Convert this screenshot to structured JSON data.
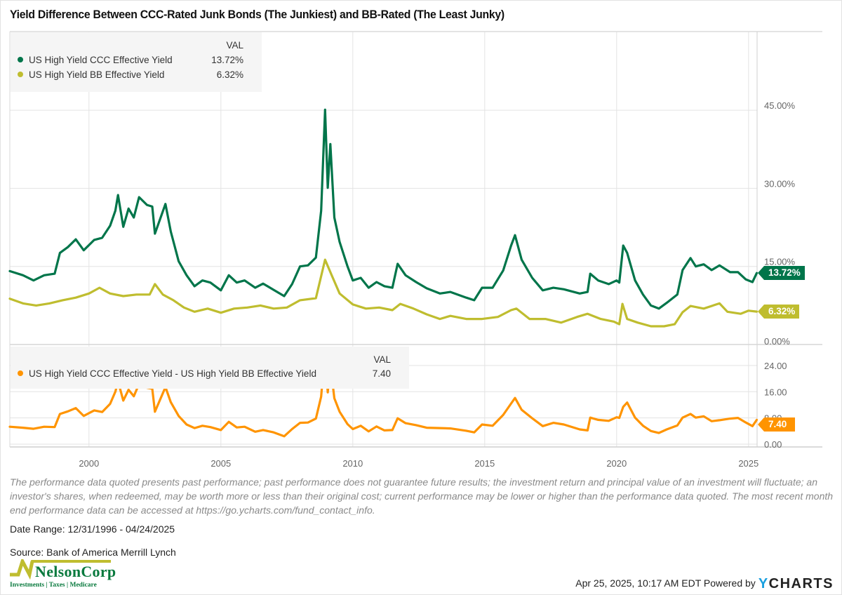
{
  "title": "Yield Difference Between CCC-Rated Junk Bonds (The Junkiest) and BB-Rated (The Least Junky)",
  "legend_top": {
    "header": "VAL",
    "items": [
      {
        "label": "US High Yield CCC Effective Yield",
        "value": "13.72%",
        "color": "#00754a"
      },
      {
        "label": "US High Yield BB Effective Yield",
        "value": "6.32%",
        "color": "#bfbd2f"
      }
    ]
  },
  "legend_bottom": {
    "header": "VAL",
    "items": [
      {
        "label": "US High Yield CCC Effective Yield - US High Yield BB Effective Yield",
        "value": "7.40",
        "color": "#ff9400"
      }
    ]
  },
  "tags": {
    "ccc": "13.72%",
    "bb": "6.32%",
    "spread": "7.40"
  },
  "chart_data": [
    {
      "type": "line",
      "title": "Yield Difference Between CCC-Rated Junk Bonds (The Junkiest) and BB-Rated (The Least Junky)",
      "xlabel": "",
      "ylabel": "",
      "x_ticks": [
        "2000",
        "2005",
        "2010",
        "2015",
        "2020",
        "2025"
      ],
      "xlim": [
        1997.0,
        2025.31
      ],
      "y_ticks": [
        "0.00%",
        "15.00%",
        "30.00%",
        "45.00%"
      ],
      "ylim": [
        0,
        45
      ],
      "grid": true,
      "legend": "top-left",
      "series": [
        {
          "name": "US High Yield CCC Effective Yield",
          "color": "#00754a",
          "last_value": 13.72,
          "x": [
            1997.0,
            1997.5,
            1997.9,
            1998.3,
            1998.7,
            1998.9,
            1999.2,
            1999.5,
            1999.8,
            2000.2,
            2000.5,
            2000.8,
            2001.0,
            2001.1,
            2001.3,
            2001.5,
            2001.7,
            2001.9,
            2002.2,
            2002.4,
            2002.5,
            2002.9,
            2003.1,
            2003.4,
            2003.7,
            2004.0,
            2004.3,
            2004.6,
            2005.0,
            2005.3,
            2005.6,
            2005.9,
            2006.3,
            2006.6,
            2007.0,
            2007.4,
            2007.7,
            2008.0,
            2008.3,
            2008.6,
            2008.8,
            2008.95,
            2009.05,
            2009.15,
            2009.3,
            2009.5,
            2009.8,
            2010.0,
            2010.3,
            2010.6,
            2010.9,
            2011.2,
            2011.5,
            2011.7,
            2012.0,
            2012.4,
            2012.8,
            2013.3,
            2013.7,
            2014.3,
            2014.6,
            2014.9,
            2015.3,
            2015.7,
            2016.0,
            2016.15,
            2016.4,
            2016.8,
            2017.2,
            2017.6,
            2018.0,
            2018.6,
            2018.9,
            2019.0,
            2019.3,
            2019.7,
            2020.0,
            2020.1,
            2020.25,
            2020.4,
            2020.7,
            2021.0,
            2021.3,
            2021.6,
            2021.9,
            2022.3,
            2022.5,
            2022.8,
            2023.0,
            2023.3,
            2023.6,
            2023.9,
            2024.3,
            2024.6,
            2024.9,
            2025.15,
            2025.31
          ],
          "values": [
            14.1,
            13.3,
            12.3,
            13.3,
            13.6,
            17.6,
            18.7,
            20.2,
            18.1,
            20.1,
            20.5,
            22.8,
            25.7,
            28.7,
            22.6,
            26.1,
            24.4,
            28.3,
            26.8,
            26.5,
            21.3,
            27.0,
            21.7,
            16.0,
            13.3,
            11.2,
            12.3,
            11.9,
            10.4,
            13.3,
            11.9,
            12.3,
            10.9,
            11.7,
            10.5,
            9.3,
            11.6,
            15.0,
            15.2,
            16.7,
            25.7,
            45.1,
            30.1,
            38.5,
            24.4,
            19.7,
            15.0,
            12.3,
            12.8,
            10.9,
            12.0,
            11.2,
            10.9,
            15.5,
            13.3,
            12.0,
            10.8,
            9.8,
            10.1,
            9.0,
            8.5,
            10.9,
            10.9,
            14.2,
            19.0,
            21.0,
            16.3,
            12.8,
            10.4,
            10.9,
            10.6,
            9.8,
            10.1,
            13.6,
            12.3,
            11.6,
            12.3,
            11.9,
            19.0,
            17.6,
            12.3,
            9.6,
            7.5,
            6.9,
            8.0,
            9.6,
            14.3,
            16.6,
            15.0,
            15.4,
            14.3,
            15.2,
            13.9,
            13.9,
            12.5,
            12.0,
            13.72
          ]
        },
        {
          "name": "US High Yield BB Effective Yield",
          "color": "#bfbd2f",
          "last_value": 6.32,
          "x": [
            1997.0,
            1997.5,
            1998.0,
            1998.5,
            1999.0,
            1999.5,
            2000.0,
            2000.4,
            2000.8,
            2001.3,
            2001.8,
            2002.3,
            2002.5,
            2002.8,
            2003.2,
            2003.6,
            2004.0,
            2004.5,
            2005.0,
            2005.5,
            2006.0,
            2006.5,
            2007.0,
            2007.5,
            2008.0,
            2008.6,
            2008.95,
            2009.2,
            2009.5,
            2010.0,
            2010.5,
            2011.0,
            2011.5,
            2011.8,
            2012.3,
            2012.8,
            2013.3,
            2013.7,
            2014.3,
            2014.9,
            2015.5,
            2016.0,
            2016.2,
            2016.7,
            2017.3,
            2017.9,
            2018.5,
            2018.9,
            2019.4,
            2019.9,
            2020.1,
            2020.22,
            2020.4,
            2020.8,
            2021.3,
            2021.8,
            2022.2,
            2022.5,
            2022.8,
            2023.3,
            2023.9,
            2024.2,
            2024.7,
            2025.0,
            2025.31
          ],
          "values": [
            8.8,
            7.9,
            7.5,
            7.9,
            8.5,
            9.0,
            9.8,
            10.9,
            9.8,
            9.3,
            9.6,
            9.6,
            11.6,
            9.6,
            8.5,
            7.1,
            6.3,
            6.9,
            6.1,
            6.9,
            7.1,
            7.5,
            6.9,
            7.1,
            8.5,
            8.9,
            16.3,
            13.3,
            9.8,
            7.7,
            6.9,
            7.1,
            6.6,
            7.8,
            6.9,
            5.8,
            4.9,
            5.5,
            4.9,
            4.9,
            5.3,
            6.6,
            6.9,
            4.9,
            4.9,
            4.2,
            5.3,
            5.9,
            4.9,
            4.4,
            3.9,
            7.8,
            4.9,
            4.2,
            3.5,
            3.5,
            3.9,
            6.2,
            7.4,
            6.9,
            7.9,
            6.3,
            5.9,
            6.5,
            6.32
          ]
        }
      ]
    },
    {
      "type": "line",
      "title": "",
      "xlabel": "",
      "ylabel": "",
      "x_ticks": [
        "2000",
        "2005",
        "2010",
        "2015",
        "2020",
        "2025"
      ],
      "xlim": [
        1997.0,
        2025.31
      ],
      "y_ticks": [
        "0.00",
        "8.00",
        "16.00",
        "24.00"
      ],
      "ylim": [
        0,
        29
      ],
      "grid": true,
      "legend": "top-left",
      "series": [
        {
          "name": "US High Yield CCC Effective Yield - US High Yield BB Effective Yield",
          "color": "#ff9400",
          "last_value": 7.4,
          "x": [
            1997.0,
            1997.5,
            1997.9,
            1998.3,
            1998.7,
            1998.9,
            1999.2,
            1999.5,
            1999.8,
            2000.2,
            2000.5,
            2000.8,
            2001.0,
            2001.1,
            2001.3,
            2001.5,
            2001.7,
            2001.9,
            2002.2,
            2002.4,
            2002.5,
            2002.9,
            2003.1,
            2003.4,
            2003.7,
            2004.0,
            2004.3,
            2004.6,
            2005.0,
            2005.3,
            2005.6,
            2005.9,
            2006.3,
            2006.6,
            2007.0,
            2007.4,
            2007.7,
            2008.0,
            2008.3,
            2008.6,
            2008.8,
            2008.95,
            2009.05,
            2009.15,
            2009.3,
            2009.5,
            2009.8,
            2010.0,
            2010.3,
            2010.6,
            2010.9,
            2011.2,
            2011.5,
            2011.7,
            2012.0,
            2012.4,
            2012.8,
            2013.3,
            2013.7,
            2014.3,
            2014.6,
            2014.9,
            2015.3,
            2015.7,
            2016.0,
            2016.15,
            2016.4,
            2016.8,
            2017.2,
            2017.6,
            2018.0,
            2018.6,
            2018.9,
            2019.0,
            2019.3,
            2019.7,
            2020.0,
            2020.1,
            2020.25,
            2020.4,
            2020.7,
            2021.0,
            2021.3,
            2021.6,
            2021.9,
            2022.3,
            2022.5,
            2022.8,
            2023.0,
            2023.3,
            2023.6,
            2023.9,
            2024.3,
            2024.6,
            2024.9,
            2025.15,
            2025.31
          ],
          "values": [
            5.3,
            5.0,
            4.7,
            5.3,
            5.2,
            9.2,
            10.0,
            11.0,
            8.6,
            10.3,
            9.8,
            12.3,
            16.0,
            19.2,
            13.3,
            16.6,
            14.6,
            18.4,
            17.2,
            16.9,
            9.9,
            17.4,
            12.8,
            8.6,
            6.0,
            4.9,
            5.6,
            5.2,
            4.3,
            6.8,
            5.1,
            5.3,
            3.8,
            4.3,
            3.6,
            2.4,
            4.6,
            6.5,
            6.6,
            7.8,
            14.5,
            28.8,
            15.8,
            24.4,
            14.0,
            9.9,
            6.1,
            4.6,
            5.6,
            3.9,
            5.4,
            4.2,
            4.3,
            7.9,
            6.4,
            5.8,
            5.0,
            4.9,
            4.8,
            4.1,
            3.6,
            6.0,
            5.6,
            8.9,
            12.4,
            14.1,
            10.5,
            7.9,
            5.5,
            6.5,
            6.0,
            4.5,
            4.2,
            8.1,
            7.4,
            7.1,
            8.2,
            8.0,
            11.4,
            12.7,
            8.1,
            5.6,
            4.0,
            3.4,
            4.5,
            5.7,
            8.1,
            9.2,
            8.1,
            8.5,
            7.0,
            7.3,
            7.8,
            8.0,
            6.6,
            5.5,
            7.4
          ]
        }
      ]
    }
  ],
  "disclaimer": "The performance data quoted presents past performance; past performance does not guarantee future results; the investment return and principal value of an investment will fluctuate; an investor's shares, when redeemed, may be worth more or less than their original cost; current performance may be lower or higher than the performance data quoted. The most recent month end performance data can be accessed at https://go.ycharts.com/fund_contact_info.",
  "date_range": "Date Range: 12/31/1996 - 04/24/2025",
  "source": "Source: Bank of America Merrill Lynch",
  "logo": {
    "name": "NelsonCorp",
    "tagline": "Investments | Taxes | Medicare"
  },
  "footer": {
    "timestamp": "Apr 25, 2025, 10:17 AM EDT Powered by",
    "brand_y": "Y",
    "brand_rest": "CHARTS"
  }
}
